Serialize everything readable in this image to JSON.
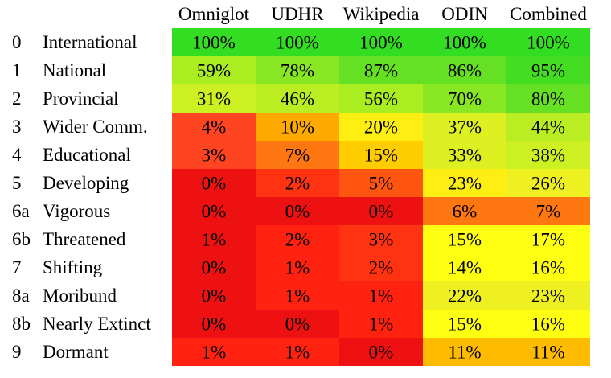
{
  "chart_data": {
    "type": "heatmap",
    "columns": [
      "Omniglot",
      "UDHR",
      "Wikipedia",
      "ODIN",
      "Combined"
    ],
    "rows": [
      {
        "id": "0",
        "label": "International",
        "values": [
          100,
          100,
          100,
          100,
          100
        ]
      },
      {
        "id": "1",
        "label": "National",
        "values": [
          59,
          78,
          87,
          86,
          95
        ]
      },
      {
        "id": "2",
        "label": "Provincial",
        "values": [
          31,
          46,
          56,
          70,
          80
        ]
      },
      {
        "id": "3",
        "label": "Wider Comm.",
        "values": [
          4,
          10,
          20,
          37,
          44
        ]
      },
      {
        "id": "4",
        "label": "Educational",
        "values": [
          3,
          7,
          15,
          33,
          38
        ]
      },
      {
        "id": "5",
        "label": "Developing",
        "values": [
          0,
          2,
          5,
          23,
          26
        ]
      },
      {
        "id": "6a",
        "label": "Vigorous",
        "values": [
          0,
          0,
          0,
          6,
          7
        ]
      },
      {
        "id": "6b",
        "label": "Threatened",
        "values": [
          1,
          2,
          3,
          15,
          17
        ]
      },
      {
        "id": "7",
        "label": "Shifting",
        "values": [
          0,
          1,
          2,
          14,
          16
        ]
      },
      {
        "id": "8a",
        "label": "Moribund",
        "values": [
          0,
          1,
          1,
          22,
          23
        ]
      },
      {
        "id": "8b",
        "label": "Nearly Extinct",
        "values": [
          0,
          0,
          1,
          15,
          16
        ]
      },
      {
        "id": "9",
        "label": "Dormant",
        "values": [
          1,
          1,
          0,
          11,
          11
        ]
      }
    ],
    "value_suffix": "%",
    "cell_colors": [
      [
        "#33dd22",
        "#33dd22",
        "#33dd22",
        "#33dd22",
        "#33dd22"
      ],
      [
        "#aaee22",
        "#88e622",
        "#66e022",
        "#66e022",
        "#44dd22"
      ],
      [
        "#ccf022",
        "#bbee22",
        "#aaee22",
        "#88e622",
        "#66e022"
      ],
      [
        "#ff4422",
        "#ffaa00",
        "#ffee11",
        "#ddf022",
        "#bbee22"
      ],
      [
        "#ff4422",
        "#ff7711",
        "#ffcc00",
        "#ddf022",
        "#ccf022"
      ],
      [
        "#ee1111",
        "#ff3311",
        "#ff5511",
        "#ffee11",
        "#eef022"
      ],
      [
        "#ee1111",
        "#ee1111",
        "#ee1111",
        "#ff7711",
        "#ff7711"
      ],
      [
        "#ee1111",
        "#ff2211",
        "#ff3311",
        "#ffff11",
        "#ffff11"
      ],
      [
        "#ee1111",
        "#ff2211",
        "#ff3311",
        "#ffff11",
        "#ffff11"
      ],
      [
        "#ee1111",
        "#ff2211",
        "#ff2211",
        "#eef022",
        "#eef022"
      ],
      [
        "#ee1111",
        "#ee1111",
        "#ff2211",
        "#ffff11",
        "#ffff11"
      ],
      [
        "#ff2211",
        "#ff2211",
        "#ee1111",
        "#ffbb00",
        "#ffbb00"
      ]
    ]
  }
}
